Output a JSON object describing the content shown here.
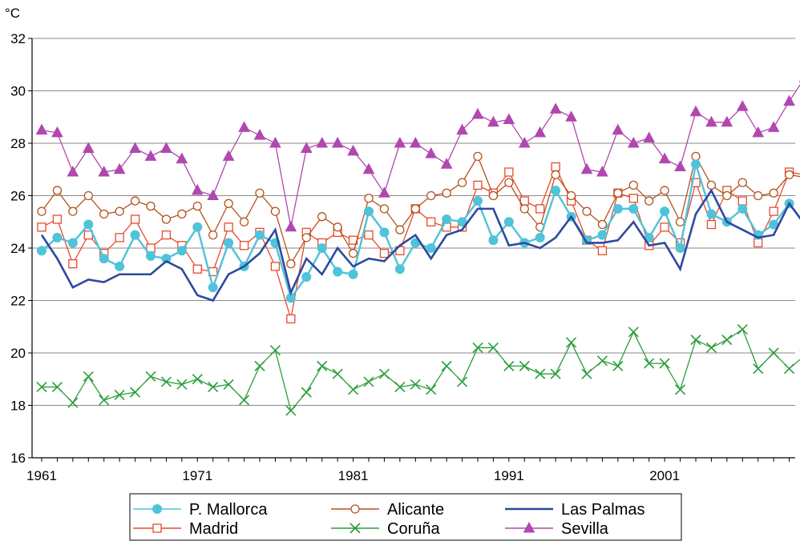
{
  "chart_data": {
    "type": "line",
    "title": "",
    "xlabel": "",
    "ylabel": "°C",
    "xlim": [
      1961,
      2010
    ],
    "ylim": [
      16,
      32
    ],
    "x_ticks": [
      "1961",
      "1971",
      "1981",
      "1991",
      "2001"
    ],
    "y_ticks": [
      "16",
      "18",
      "20",
      "22",
      "24",
      "26",
      "28",
      "30",
      "32"
    ],
    "grid": "horizontal",
    "legend_position": "bottom",
    "x": [
      1961,
      1962,
      1963,
      1964,
      1965,
      1966,
      1967,
      1968,
      1969,
      1970,
      1971,
      1972,
      1973,
      1974,
      1975,
      1976,
      1977,
      1978,
      1979,
      1980,
      1981,
      1982,
      1983,
      1984,
      1985,
      1986,
      1987,
      1988,
      1989,
      1990,
      1991,
      1992,
      1993,
      1994,
      1995,
      1996,
      1997,
      1998,
      1999,
      2000,
      2001,
      2002,
      2003,
      2004,
      2005,
      2006,
      2007,
      2008,
      2009,
      2010
    ],
    "series": [
      {
        "name": "P. Mallorca",
        "color": "#4fc3d9",
        "marker": "filled-circle",
        "values": [
          23.9,
          24.4,
          24.2,
          24.9,
          23.6,
          23.3,
          24.5,
          23.7,
          23.6,
          23.9,
          24.8,
          22.5,
          24.2,
          23.3,
          24.5,
          24.2,
          22.1,
          22.9,
          24.0,
          23.1,
          23.0,
          25.4,
          24.6,
          23.2,
          24.2,
          24.0,
          25.1,
          25.0,
          25.8,
          24.3,
          25.0,
          24.2,
          24.4,
          26.2,
          25.2,
          24.3,
          24.5,
          25.5,
          25.5,
          24.4,
          25.4,
          24.0,
          27.2,
          25.3,
          25.0,
          25.5,
          24.5,
          24.9,
          25.7,
          24.9
        ]
      },
      {
        "name": "Alicante",
        "color": "#b5521c",
        "marker": "open-circle",
        "values": [
          25.4,
          26.2,
          25.4,
          26.0,
          25.3,
          25.4,
          25.8,
          25.6,
          25.1,
          25.3,
          25.6,
          24.5,
          25.7,
          25.0,
          26.1,
          25.4,
          23.4,
          24.4,
          25.2,
          24.8,
          23.8,
          25.9,
          25.5,
          24.7,
          25.5,
          26.0,
          26.1,
          26.5,
          27.5,
          26.0,
          26.5,
          25.5,
          24.8,
          26.8,
          26.0,
          25.4,
          24.9,
          26.1,
          26.4,
          25.8,
          26.2,
          25.0,
          27.5,
          26.4,
          26.0,
          26.5,
          26.0,
          26.1,
          26.8,
          26.7
        ]
      },
      {
        "name": "Las Palmas",
        "color": "#2e4a9e",
        "marker": "none",
        "values": [
          24.5,
          23.6,
          22.5,
          22.8,
          22.7,
          23.0,
          23.0,
          23.0,
          23.5,
          23.2,
          22.2,
          22.0,
          23.0,
          23.3,
          23.8,
          24.7,
          22.3,
          23.6,
          23.0,
          24.0,
          23.3,
          23.6,
          23.5,
          24.1,
          24.5,
          23.6,
          24.5,
          24.7,
          25.5,
          25.5,
          24.1,
          24.2,
          24.0,
          24.4,
          25.2,
          24.2,
          24.2,
          24.3,
          25.0,
          24.1,
          24.2,
          23.2,
          25.3,
          26.2,
          25.0,
          24.7,
          24.4,
          24.5,
          25.7,
          24.9
        ]
      },
      {
        "name": "Madrid",
        "color": "#e84a2b",
        "marker": "open-square",
        "values": [
          24.8,
          25.1,
          23.4,
          24.5,
          23.8,
          24.4,
          25.1,
          24.0,
          24.5,
          24.1,
          23.2,
          23.1,
          24.8,
          24.1,
          24.6,
          23.3,
          21.3,
          24.6,
          24.2,
          24.6,
          24.3,
          24.5,
          23.8,
          23.9,
          25.5,
          25.0,
          24.8,
          24.8,
          26.4,
          26.1,
          26.9,
          25.8,
          25.5,
          27.1,
          25.8,
          24.3,
          23.9,
          26.1,
          25.9,
          24.1,
          24.8,
          24.2,
          26.5,
          24.9,
          26.2,
          25.8,
          24.2,
          25.4,
          26.9,
          26.8
        ]
      },
      {
        "name": "Coruña",
        "color": "#2c9e3c",
        "marker": "x",
        "values": [
          18.7,
          18.7,
          18.1,
          19.1,
          18.2,
          18.4,
          18.5,
          19.1,
          18.9,
          18.8,
          19.0,
          18.7,
          18.8,
          18.2,
          19.5,
          20.1,
          17.8,
          18.5,
          19.5,
          19.2,
          18.6,
          18.9,
          19.2,
          18.7,
          18.8,
          18.6,
          19.5,
          18.9,
          20.2,
          20.2,
          19.5,
          19.5,
          19.2,
          19.2,
          20.4,
          19.2,
          19.7,
          19.5,
          20.8,
          19.6,
          19.6,
          18.6,
          20.5,
          20.2,
          20.5,
          20.9,
          19.4,
          20.0,
          19.4,
          19.9
        ]
      },
      {
        "name": "Sevilla",
        "color": "#b048b0",
        "marker": "filled-triangle",
        "values": [
          28.5,
          28.4,
          26.9,
          27.8,
          26.9,
          27.0,
          27.8,
          27.5,
          27.8,
          27.4,
          26.2,
          26.0,
          27.5,
          28.6,
          28.3,
          28.0,
          24.8,
          27.8,
          28.0,
          28.0,
          27.7,
          27.0,
          26.1,
          28.0,
          28.0,
          27.6,
          27.2,
          28.5,
          29.1,
          28.8,
          28.9,
          28.0,
          28.4,
          29.3,
          29.0,
          27.0,
          26.9,
          28.5,
          28.0,
          28.2,
          27.4,
          27.1,
          29.2,
          28.8,
          28.8,
          29.4,
          28.4,
          28.6,
          29.6,
          30.5
        ]
      }
    ]
  }
}
